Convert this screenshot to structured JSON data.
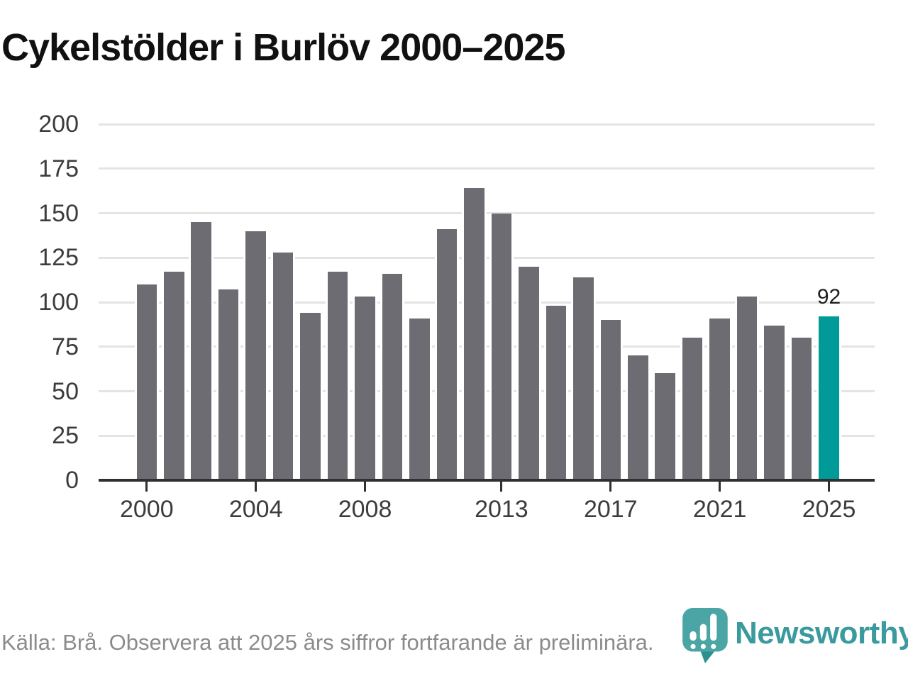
{
  "title": "Cykelstölder i Burlöv 2000–2025",
  "chart_data": {
    "type": "bar",
    "title": "Cykelstölder i Burlöv 2000–2025",
    "categories": [
      2000,
      2001,
      2002,
      2003,
      2004,
      2005,
      2006,
      2007,
      2008,
      2009,
      2010,
      2011,
      2012,
      2013,
      2014,
      2015,
      2016,
      2017,
      2018,
      2019,
      2020,
      2021,
      2022,
      2023,
      2024,
      2025
    ],
    "values": [
      110,
      117,
      145,
      107,
      140,
      128,
      94,
      117,
      103,
      116,
      91,
      141,
      164,
      150,
      120,
      98,
      114,
      90,
      70,
      60,
      80,
      91,
      103,
      87,
      80,
      92
    ],
    "highlight_index": 25,
    "annotation": {
      "year": 2025,
      "label": "92"
    },
    "ylim": [
      0,
      200
    ],
    "yticks": [
      0,
      25,
      50,
      75,
      100,
      125,
      150,
      175,
      200
    ],
    "xticks": [
      2000,
      2004,
      2008,
      2013,
      2017,
      2021,
      2025
    ],
    "grid": true,
    "legend_position": "none",
    "bar_color": "#6d6c72",
    "highlight_color": "#009b98"
  },
  "footer": {
    "source_note": "Källa: Brå. Observera att 2025 års siffror fortfarande är preliminära.",
    "brand_name": "Newsworthy"
  },
  "colors": {
    "accent_teal": "#009b98",
    "bar_gray": "#6d6c72",
    "gridline": "#e4e4e4",
    "axis": "#303030",
    "tick_label": "#3c3c3c",
    "title_text": "#111111",
    "muted_text": "#8b8b8b",
    "logo_text_teal": "#3b9a9e",
    "logo_bubble_teal": "#4aa5a4",
    "logo_tail_teal": "#2f8f8f"
  }
}
